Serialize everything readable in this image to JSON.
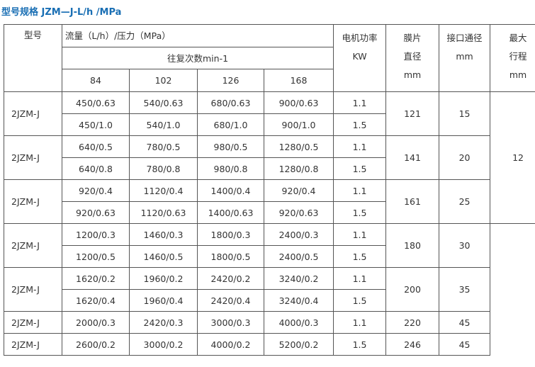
{
  "title": "型号规格 JZM—J-L/h /MPa",
  "table": {
    "headers": {
      "model": "型号",
      "flow": "流量（L/h）/压力（MPa）",
      "strokes": "往复次数min-1",
      "speeds": [
        "84",
        "102",
        "126",
        "168"
      ],
      "power": [
        "电机功率",
        "KW"
      ],
      "diaphragm": [
        "膜片",
        "直径",
        "mm"
      ],
      "port": [
        "接口通径",
        "mm"
      ],
      "stroke_len": [
        "最大",
        "行程",
        "mm"
      ]
    },
    "max_stroke": "12",
    "groups": [
      {
        "model": "2JZM-J",
        "diaphragm": "121",
        "port": "15",
        "rows": [
          {
            "v": [
              "450/0.63",
              "540/0.63",
              "680/0.63",
              "900/0.63"
            ],
            "power": "1.1"
          },
          {
            "v": [
              "450/1.0",
              "540/1.0",
              "680/1.0",
              "900/1.0"
            ],
            "power": "1.5"
          }
        ]
      },
      {
        "model": "2JZM-J",
        "diaphragm": "141",
        "port": "20",
        "rows": [
          {
            "v": [
              "640/0.5",
              "780/0.5",
              "980/0.5",
              "1280/0.5"
            ],
            "power": "1.1"
          },
          {
            "v": [
              "640/0.8",
              "780/0.8",
              "980/0.8",
              "1280/0.8"
            ],
            "power": "1.5"
          }
        ]
      },
      {
        "model": "2JZM-J",
        "diaphragm": "161",
        "port": "25",
        "rows": [
          {
            "v": [
              "920/0.4",
              "1120/0.4",
              "1400/0.4",
              "920/0.4"
            ],
            "power": "1.1"
          },
          {
            "v": [
              "920/0.63",
              "1120/0.63",
              "1400/0.63",
              "920/0.63"
            ],
            "power": "1.5"
          }
        ]
      },
      {
        "model": "2JZM-J",
        "diaphragm": "180",
        "port": "30",
        "rows": [
          {
            "v": [
              "1200/0.3",
              "1460/0.3",
              "1800/0.3",
              "2400/0.3"
            ],
            "power": "1.1"
          },
          {
            "v": [
              "1200/0.5",
              "1460/0.5",
              "1800/0.5",
              "2400/0.5"
            ],
            "power": "1.5"
          }
        ]
      },
      {
        "model": "2JZM-J",
        "diaphragm": "200",
        "port": "35",
        "rows": [
          {
            "v": [
              "1620/0.2",
              "1960/0.2",
              "2420/0.2",
              "3240/0.2"
            ],
            "power": "1.1"
          },
          {
            "v": [
              "1620/0.4",
              "1960/0.4",
              "2420/0.4",
              "3240/0.4"
            ],
            "power": "1.5"
          }
        ]
      },
      {
        "model": "2JZM-J",
        "diaphragm": "220",
        "port": "45",
        "rows": [
          {
            "v": [
              "2000/0.3",
              "2420/0.3",
              "3000/0.3",
              "4000/0.3"
            ],
            "power": "1.1"
          }
        ]
      },
      {
        "model": "2JZM-J",
        "diaphragm": "246",
        "port": "45",
        "rows": [
          {
            "v": [
              "2600/0.2",
              "3000/0.2",
              "4000/0.2",
              "5200/0.2"
            ],
            "power": "1.5"
          }
        ]
      }
    ]
  }
}
